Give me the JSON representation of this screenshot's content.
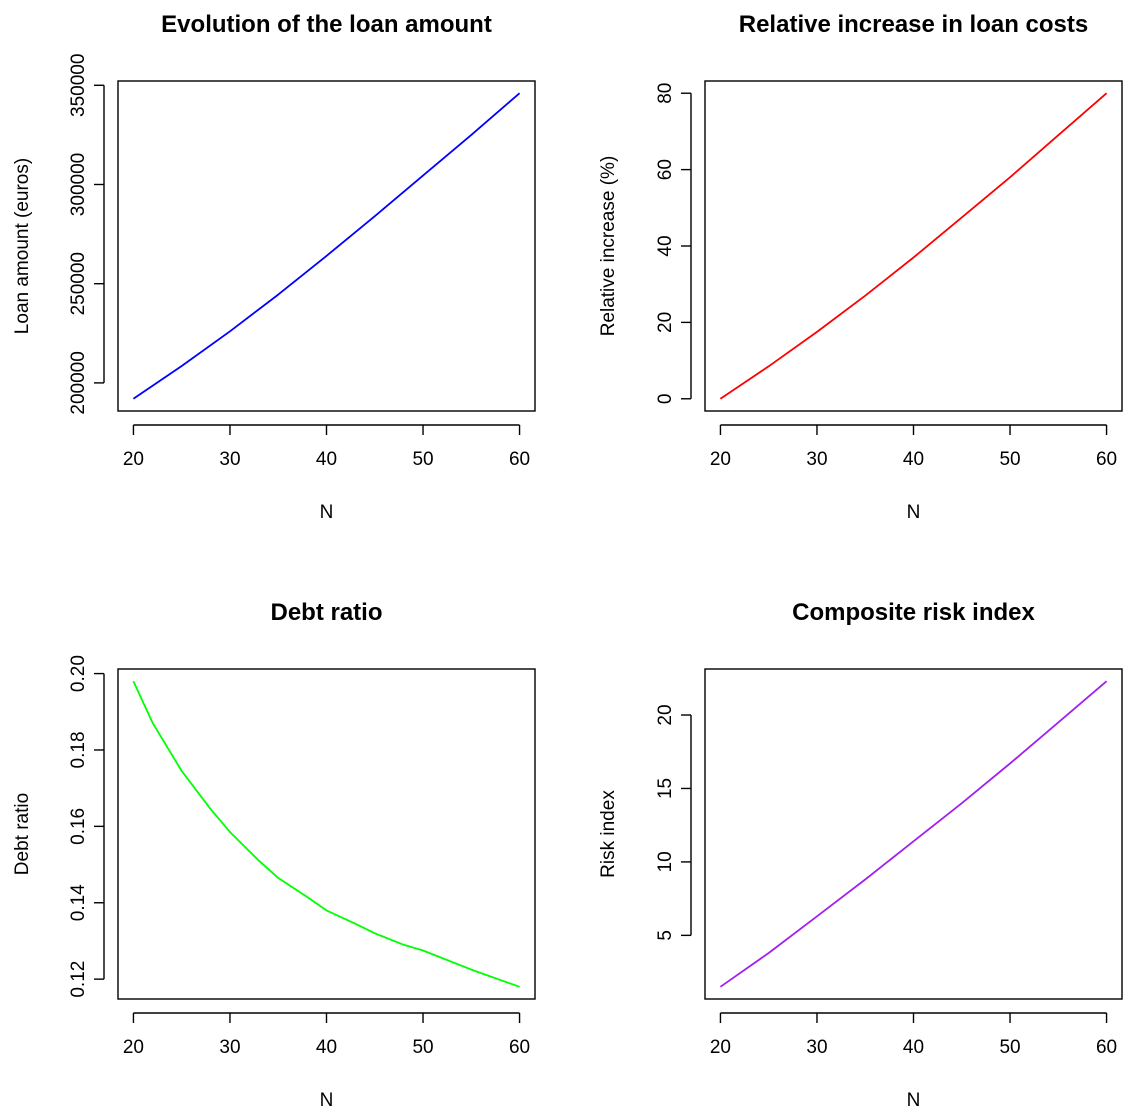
{
  "chart_data": [
    {
      "type": "line",
      "title": "Evolution of the loan amount",
      "xlabel": "N",
      "ylabel": "Loan amount (euros)",
      "xlim": [
        20,
        60
      ],
      "ylim": [
        192000,
        346000
      ],
      "xticks": [
        20,
        30,
        40,
        50,
        60
      ],
      "yticks": [
        200000,
        250000,
        300000,
        350000
      ],
      "grid": false,
      "color": "#0000ff",
      "x": [
        20,
        25,
        30,
        35,
        40,
        45,
        50,
        55,
        60
      ],
      "y": [
        192000,
        208500,
        226000,
        244500,
        264000,
        284000,
        304500,
        325000,
        346000
      ]
    },
    {
      "type": "line",
      "title": "Relative increase in loan costs",
      "xlabel": "N",
      "ylabel": "Relative increase (%)",
      "xlim": [
        20,
        60
      ],
      "ylim": [
        0,
        80
      ],
      "xticks": [
        20,
        30,
        40,
        50,
        60
      ],
      "yticks": [
        0,
        20,
        40,
        60,
        80
      ],
      "grid": false,
      "color": "#ff0000",
      "x": [
        20,
        25,
        30,
        35,
        40,
        45,
        50,
        55,
        60
      ],
      "y": [
        0,
        8.5,
        17.5,
        27,
        37,
        47.5,
        58,
        69,
        80
      ]
    },
    {
      "type": "line",
      "title": "Debt ratio",
      "xlabel": "N",
      "ylabel": "Debt ratio",
      "xlim": [
        20,
        60
      ],
      "ylim": [
        0.118,
        0.198
      ],
      "xticks": [
        20,
        30,
        40,
        50,
        60
      ],
      "yticks": [
        0.12,
        0.14,
        0.16,
        0.18,
        0.2
      ],
      "yticklabels": [
        "0.12",
        "0.14",
        "0.16",
        "0.18",
        "0.20"
      ],
      "grid": false,
      "color": "#00ff00",
      "x": [
        20,
        22,
        25,
        28,
        30,
        33,
        35,
        38,
        40,
        43,
        45,
        48,
        50,
        55,
        60
      ],
      "y": [
        0.198,
        0.187,
        0.1745,
        0.1645,
        0.1585,
        0.151,
        0.1465,
        0.1415,
        0.138,
        0.1345,
        0.132,
        0.129,
        0.1275,
        0.1225,
        0.118
      ]
    },
    {
      "type": "line",
      "title": "Composite risk index",
      "xlabel": "N",
      "ylabel": "Risk index",
      "xlim": [
        20,
        60
      ],
      "ylim": [
        1.5,
        22.3
      ],
      "xticks": [
        20,
        30,
        40,
        50,
        60
      ],
      "yticks": [
        5,
        10,
        15,
        20
      ],
      "grid": false,
      "color": "#a020f0",
      "x": [
        20,
        25,
        30,
        35,
        40,
        45,
        50,
        55,
        60
      ],
      "y": [
        1.5,
        3.8,
        6.3,
        8.8,
        11.4,
        14.0,
        16.7,
        19.5,
        22.3
      ]
    }
  ]
}
